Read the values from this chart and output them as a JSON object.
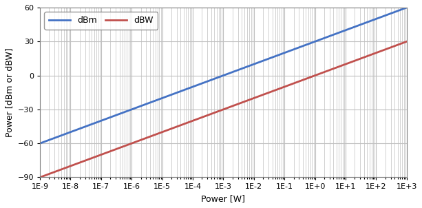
{
  "title": "",
  "xlabel": "Power [W]",
  "ylabel": "Power [dBm or dBW]",
  "xmin": 1e-09,
  "xmax": 1000.0,
  "ymin": -90,
  "ymax": 60,
  "yticks": [
    -90,
    -60,
    -30,
    0,
    30,
    60
  ],
  "xtick_labels": [
    "1E-9",
    "1E-8",
    "1E-7",
    "1E-6",
    "1E-5",
    "1E-4",
    "1E-3",
    "1E-2",
    "1E-1",
    "1E+0",
    "1E+1",
    "1E+2",
    "1E+3"
  ],
  "line_dbm_color": "#4472C4",
  "line_dbw_color": "#C0504D",
  "line_width": 2.0,
  "legend_labels": [
    "dBm",
    "dBW"
  ],
  "background_color": "#FFFFFF",
  "grid_color": "#BFBFBF",
  "figsize": [
    6.13,
    3.02
  ],
  "dpi": 100
}
